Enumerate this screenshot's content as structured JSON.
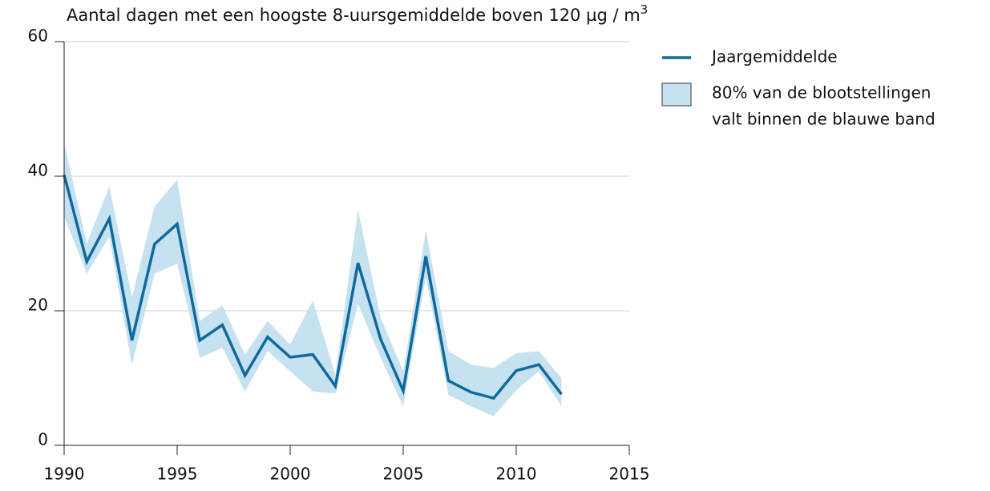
{
  "chart_data": {
    "type": "line",
    "title": "Aantal dagen met een hoogste 8-uursgemiddelde boven 120 µg / m",
    "title_superscript": "3",
    "x": [
      1990,
      1991,
      1992,
      1993,
      1994,
      1995,
      1996,
      1997,
      1998,
      1999,
      2000,
      2001,
      2002,
      2003,
      2004,
      2005,
      2006,
      2007,
      2008,
      2009,
      2010,
      2011,
      2012
    ],
    "series": [
      {
        "name": "Jaargemiddelde",
        "color": "#0e6a9c",
        "values": [
          40.2,
          27.3,
          33.7,
          15.6,
          29.9,
          32.9,
          15.6,
          17.9,
          10.4,
          16.1,
          13.1,
          13.5,
          8.8,
          27.1,
          15.8,
          8.1,
          28.1,
          9.6,
          7.9,
          7.0,
          11.1,
          12.0,
          7.6
        ]
      }
    ],
    "band": {
      "name_lines": [
        "80% van de blootstellingen",
        "valt binnen de blauwe band"
      ],
      "color": "#c6e2f0",
      "upper": [
        45,
        30,
        38.5,
        22,
        35.5,
        39.5,
        18.5,
        20.8,
        13.5,
        18.5,
        15,
        21.5,
        10.5,
        35,
        19,
        11,
        32,
        14,
        12,
        11.5,
        13.7,
        14,
        10
      ],
      "lower": [
        34,
        25.5,
        31,
        12,
        25.5,
        27,
        13,
        14.5,
        8,
        14,
        11,
        8,
        7.7,
        21,
        13,
        5.8,
        25,
        7.5,
        5.8,
        4.3,
        8.2,
        11,
        5.8
      ]
    },
    "xlim": [
      1990,
      2015
    ],
    "xticks": [
      1990,
      1995,
      2000,
      2005,
      2010,
      2015
    ],
    "ylim": [
      0,
      60
    ],
    "yticks": [
      0,
      20,
      40,
      60
    ],
    "grid": true
  }
}
